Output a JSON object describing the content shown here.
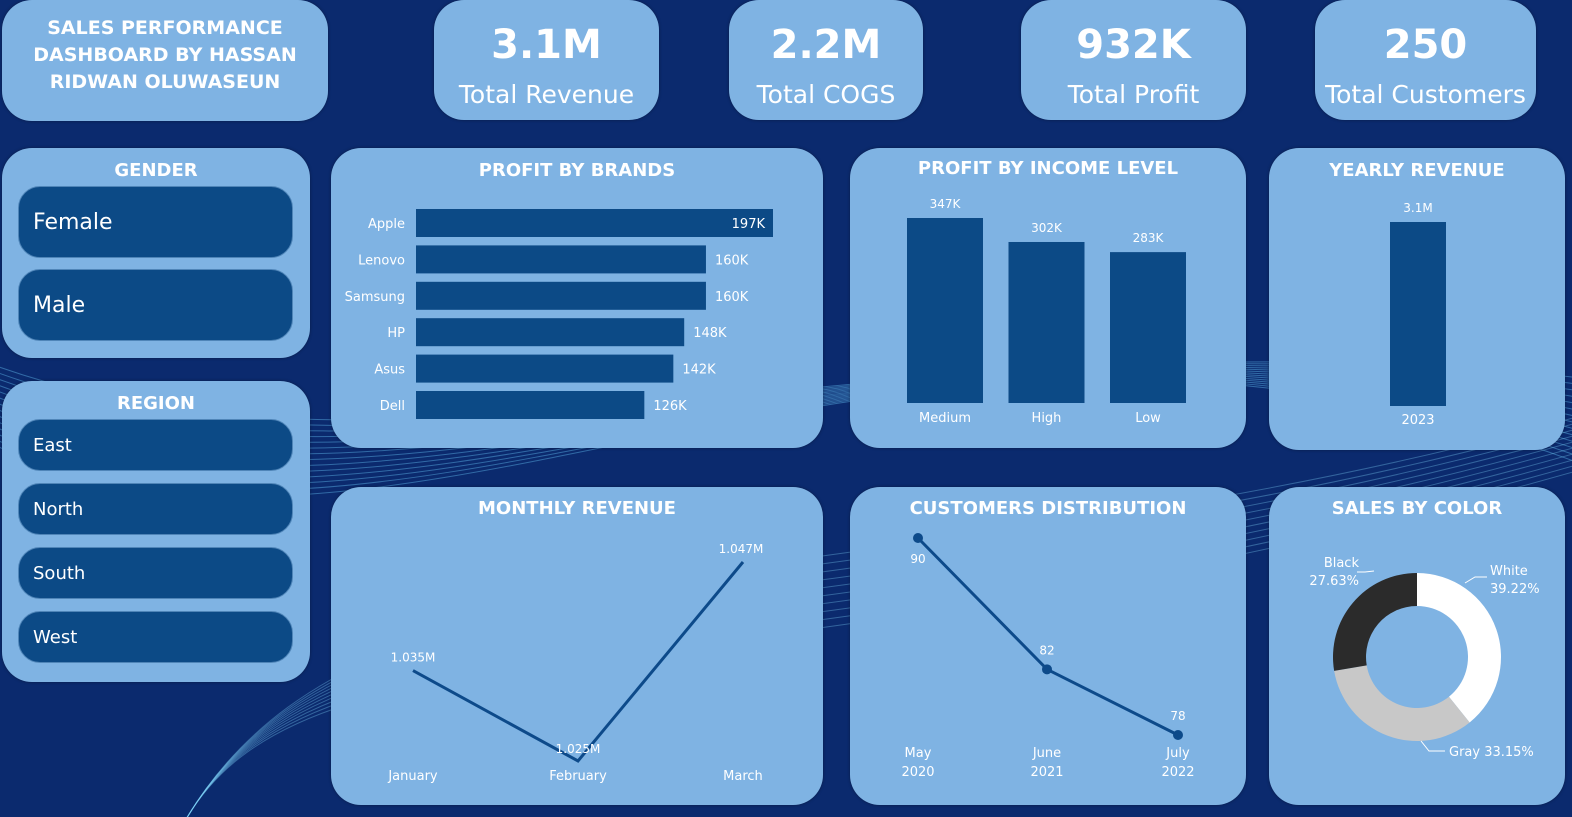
{
  "dashboard_title": "SALES PERFORMANCE DASHBOARD BY HASSAN RIDWAN OLUWASEUN",
  "kpis": [
    {
      "value": "3.1M",
      "label": "Total Revenue"
    },
    {
      "value": "2.2M",
      "label": "Total COGS"
    },
    {
      "value": "932K",
      "label": "Total Profit"
    },
    {
      "value": "250",
      "label": "Total Customers"
    }
  ],
  "gender": {
    "title": "GENDER",
    "items": [
      "Female",
      "Male"
    ]
  },
  "region": {
    "title": "REGION",
    "items": [
      "East",
      "North",
      "South",
      "West"
    ]
  },
  "colors": {
    "background": "#0b2a6e",
    "panel": "#7fb3e3",
    "bar": "#0c4a86",
    "line": "#0d4a8a"
  },
  "chart_data": [
    {
      "type": "bar",
      "orientation": "horizontal",
      "title": "PROFIT BY BRANDS",
      "categories": [
        "Apple",
        "Lenovo",
        "Samsung",
        "HP",
        "Asus",
        "Dell"
      ],
      "values": [
        197000,
        160000,
        160000,
        148000,
        142000,
        126000
      ],
      "labels": [
        "197K",
        "160K",
        "160K",
        "148K",
        "142K",
        "126K"
      ]
    },
    {
      "type": "bar",
      "title": "PROFIT BY INCOME LEVEL",
      "categories": [
        "Medium",
        "High",
        "Low"
      ],
      "values": [
        347000,
        302000,
        283000
      ],
      "labels": [
        "347K",
        "302K",
        "283K"
      ]
    },
    {
      "type": "bar",
      "title": "YEARLY REVENUE",
      "categories": [
        "2023"
      ],
      "values": [
        3100000
      ],
      "labels": [
        "3.1M"
      ]
    },
    {
      "type": "line",
      "title": "MONTHLY REVENUE",
      "categories": [
        "January",
        "February",
        "March"
      ],
      "values": [
        1035000,
        1025000,
        1047000
      ],
      "labels": [
        "1.035M",
        "1.025M",
        "1.047M"
      ]
    },
    {
      "type": "line",
      "title": "CUSTOMERS DISTRIBUTION",
      "categories": [
        [
          "May",
          "2020"
        ],
        [
          "June",
          "2021"
        ],
        [
          "July",
          "2022"
        ]
      ],
      "values": [
        90,
        82,
        78
      ],
      "labels": [
        "90",
        "82",
        "78"
      ]
    },
    {
      "type": "pie",
      "donut": true,
      "title": "SALES BY COLOR",
      "slices": [
        {
          "name": "White",
          "value": 39.22,
          "label": "39.22%",
          "color": "#ffffff"
        },
        {
          "name": "Gray",
          "value": 33.15,
          "label": "Gray 33.15%",
          "color": "#c8c8c8"
        },
        {
          "name": "Black",
          "value": 27.63,
          "label": "27.63%",
          "color": "#2b2b2b"
        }
      ]
    }
  ]
}
